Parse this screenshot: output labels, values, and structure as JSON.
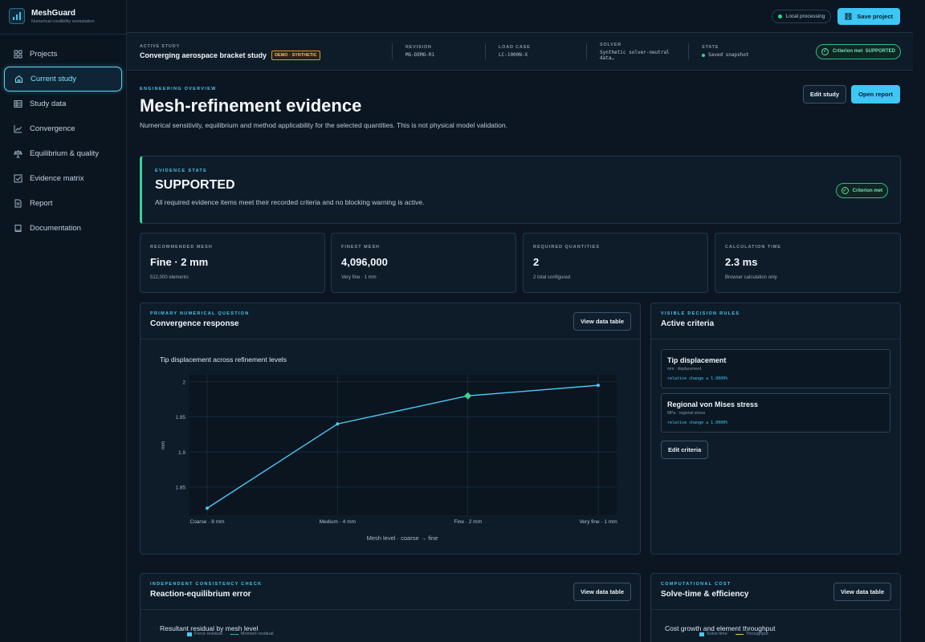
{
  "app": {
    "name": "MeshGuard",
    "subtitle": "Numerical credibility workstation"
  },
  "sidebar": {
    "items": [
      {
        "label": "Projects",
        "icon": "grid-icon"
      },
      {
        "label": "Current study",
        "icon": "home-icon",
        "active": true
      },
      {
        "label": "Study data",
        "icon": "table-icon"
      },
      {
        "label": "Convergence",
        "icon": "line-chart-icon"
      },
      {
        "label": "Equilibrium & quality",
        "icon": "balance-icon"
      },
      {
        "label": "Evidence matrix",
        "icon": "checkbox-icon"
      },
      {
        "label": "Report",
        "icon": "document-icon"
      },
      {
        "label": "Documentation",
        "icon": "book-icon"
      }
    ]
  },
  "topbar": {
    "local_processing": "Local processing",
    "save_project": "Save project"
  },
  "study": {
    "active_label": "ACTIVE STUDY",
    "active_value": "Converging aerospace bracket study",
    "badge": "DEMO · SYNTHETIC",
    "revision_label": "REVISION",
    "revision_value": "MG-DEMO-R1",
    "load_label": "LOAD CASE",
    "load_value": "LC-1000N-X",
    "solver_label": "SOLVER",
    "solver_value": "Synthetic solver-neutral data…",
    "state_label": "STATE",
    "state_value": "Saved snapshot",
    "criterion_badge": "Criterion met  SUPPORTED"
  },
  "overview": {
    "eyebrow": "ENGINEERING OVERVIEW",
    "title": "Mesh-refinement evidence",
    "description": "Numerical sensitivity, equilibrium and method applicability for the selected quantities. This is not physical model validation.",
    "edit_button": "Edit study",
    "open_report": "Open report"
  },
  "evidence": {
    "eyebrow": "EVIDENCE STATE",
    "state": "SUPPORTED",
    "text": "All required evidence items meet their recorded criteria and no blocking warning is active.",
    "badge": "Criterion met"
  },
  "stats": [
    {
      "label": "RECOMMENDED MESH",
      "value": "Fine · 2 mm",
      "sub": "512,000 elements"
    },
    {
      "label": "FINEST MESH",
      "value": "4,096,000",
      "sub": "Very fine · 1 mm"
    },
    {
      "label": "REQUIRED QUANTITIES",
      "value": "2",
      "sub": "2 total configured"
    },
    {
      "label": "CALCULATION TIME",
      "value": "2.3 ms",
      "sub": "Browser calculation only"
    }
  ],
  "convergence_card": {
    "eyebrow": "PRIMARY NUMERICAL QUESTION",
    "title": "Convergence response",
    "button": "View data table"
  },
  "chart_data": {
    "type": "line",
    "title": "Tip displacement across refinement levels",
    "xlabel": "Mesh level · coarse → fine",
    "ylabel": "mm",
    "categories": [
      "Coarse · 8 mm",
      "Medium · 4 mm",
      "Fine · 2 mm",
      "Very fine · 1 mm"
    ],
    "values": [
      1.82,
      1.94,
      1.98,
      1.995
    ],
    "highlight_index": 2,
    "yticks": [
      1.85,
      1.9,
      1.95,
      2
    ],
    "ylim": [
      1.81,
      2.01
    ],
    "grid": true,
    "line_color": "#4cc7f2",
    "highlight_color": "#3ecf96"
  },
  "criteria_card": {
    "eyebrow": "VISIBLE DECISION RULES",
    "title": "Active criteria",
    "items": [
      {
        "title": "Tip displacement",
        "sub": "mm · displacement",
        "rule": "relative change ≤ 1.0000%"
      },
      {
        "title": "Regional von Mises stress",
        "sub": "MPa · regional stress",
        "rule": "relative change ≤ 1.0000%"
      }
    ],
    "edit_button": "Edit criteria"
  },
  "equilibrium_card": {
    "eyebrow": "INDEPENDENT CONSISTENCY CHECK",
    "title": "Reaction-equilibrium error",
    "button": "View data table",
    "chart_title": "Resultant residual by mesh level",
    "legend": [
      "Force residual",
      "Moment residual"
    ]
  },
  "cost_card": {
    "eyebrow": "COMPUTATIONAL COST",
    "title": "Solve-time & efficiency",
    "button": "View data table",
    "chart_title": "Cost growth and element throughput",
    "legend": [
      "Solve time",
      "Throughput"
    ]
  }
}
